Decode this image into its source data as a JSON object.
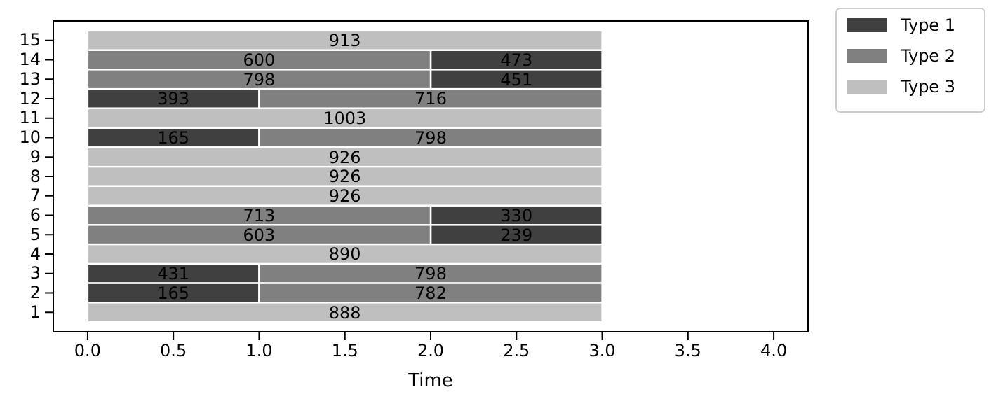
{
  "chart_data": {
    "type": "bar",
    "orientation": "horizontal",
    "xlabel": "Time",
    "categories": [
      "15",
      "14",
      "13",
      "12",
      "11",
      "10",
      "9",
      "8",
      "7",
      "6",
      "5",
      "4",
      "3",
      "2",
      "1"
    ],
    "series": [
      {
        "name": "Type 1",
        "color": "#404040",
        "values": [
          null,
          1,
          1,
          1,
          null,
          1,
          null,
          null,
          null,
          1,
          1,
          null,
          1,
          1,
          null
        ],
        "base": [
          null,
          2,
          2,
          0,
          null,
          0,
          null,
          null,
          null,
          2,
          2,
          null,
          0,
          0,
          null
        ]
      },
      {
        "name": "Type 2",
        "color": "#808080",
        "values": [
          null,
          2,
          2,
          2,
          null,
          2,
          null,
          null,
          null,
          2,
          2,
          null,
          2,
          2,
          null
        ],
        "base": [
          null,
          0,
          0,
          1,
          null,
          1,
          null,
          null,
          null,
          0,
          0,
          null,
          1,
          1,
          null
        ]
      },
      {
        "name": "Type 3",
        "color": "#bfbfbf",
        "values": [
          3,
          null,
          null,
          null,
          3,
          null,
          3,
          3,
          3,
          null,
          null,
          3,
          null,
          null,
          3
        ],
        "base": [
          0,
          null,
          null,
          null,
          0,
          null,
          0,
          0,
          0,
          null,
          null,
          0,
          null,
          null,
          0
        ]
      }
    ],
    "annotations": [
      {
        "text": "913",
        "x": 1.5,
        "y": "15"
      },
      {
        "text": "600",
        "x": 1,
        "y": "14"
      },
      {
        "text": "473",
        "x": 2.5,
        "y": "14"
      },
      {
        "text": "798",
        "x": 1,
        "y": "13"
      },
      {
        "text": "451",
        "x": 2.5,
        "y": "13"
      },
      {
        "text": "393",
        "x": 0.5,
        "y": "12"
      },
      {
        "text": "716",
        "x": 2,
        "y": "12"
      },
      {
        "text": "1003",
        "x": 1.5,
        "y": "11"
      },
      {
        "text": "165",
        "x": 0.5,
        "y": "10"
      },
      {
        "text": "798",
        "x": 2,
        "y": "10"
      },
      {
        "text": "926",
        "x": 1.5,
        "y": "9"
      },
      {
        "text": "926",
        "x": 1.5,
        "y": "8"
      },
      {
        "text": "926",
        "x": 1.5,
        "y": "7"
      },
      {
        "text": "713",
        "x": 1,
        "y": "6"
      },
      {
        "text": "330",
        "x": 2.5,
        "y": "6"
      },
      {
        "text": "603",
        "x": 1,
        "y": "5"
      },
      {
        "text": "239",
        "x": 2.5,
        "y": "5"
      },
      {
        "text": "890",
        "x": 1.5,
        "y": "4"
      },
      {
        "text": "431",
        "x": 0.5,
        "y": "3"
      },
      {
        "text": "798",
        "x": 2,
        "y": "3"
      },
      {
        "text": "165",
        "x": 0.5,
        "y": "2"
      },
      {
        "text": "782",
        "x": 2,
        "y": "2"
      },
      {
        "text": "888",
        "x": 1.5,
        "y": "1"
      }
    ],
    "xlim": [
      -0.2,
      4.2
    ],
    "xticks": [
      {
        "value": 0,
        "label": "0.0"
      },
      {
        "value": 0.5,
        "label": "0.5"
      },
      {
        "value": 1,
        "label": "1.0"
      },
      {
        "value": 1.5,
        "label": "1.5"
      },
      {
        "value": 2,
        "label": "2.0"
      },
      {
        "value": 2.5,
        "label": "2.5"
      },
      {
        "value": 3,
        "label": "3.0"
      },
      {
        "value": 3.5,
        "label": "3.5"
      },
      {
        "value": 4,
        "label": "4.0"
      }
    ],
    "legend": "top right",
    "grid": false
  }
}
